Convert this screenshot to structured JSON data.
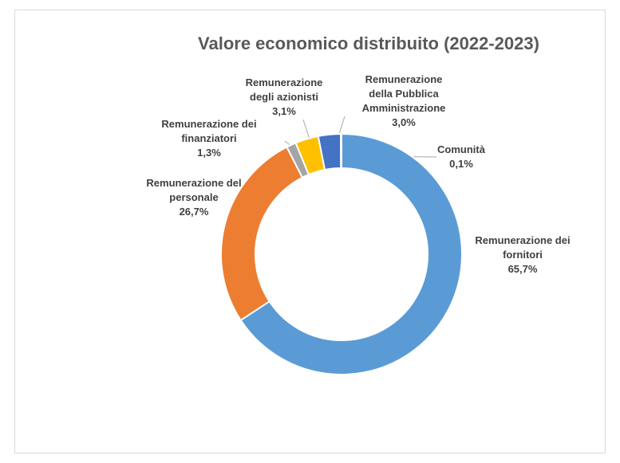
{
  "chart_data": {
    "type": "donut",
    "title": "Valore economico distribuito (2022-2023)",
    "categories": [
      "Remunerazione dei fornitori",
      "Remunerazione del personale",
      "Remunerazione dei finanziatori",
      "Remunerazione degli azionisti",
      "Remunerazione della Pubblica Amministrazione",
      "Comunità"
    ],
    "values": [
      65.7,
      26.7,
      1.3,
      3.1,
      3.0,
      0.1
    ],
    "value_labels": [
      "65,7%",
      "26,7%",
      "1,3%",
      "3,1%",
      "3,0%",
      "0,1%"
    ],
    "colors": [
      "#5b9bd5",
      "#ed7d31",
      "#a5a5a5",
      "#ffc000",
      "#4472c4",
      "#70ad47"
    ]
  }
}
